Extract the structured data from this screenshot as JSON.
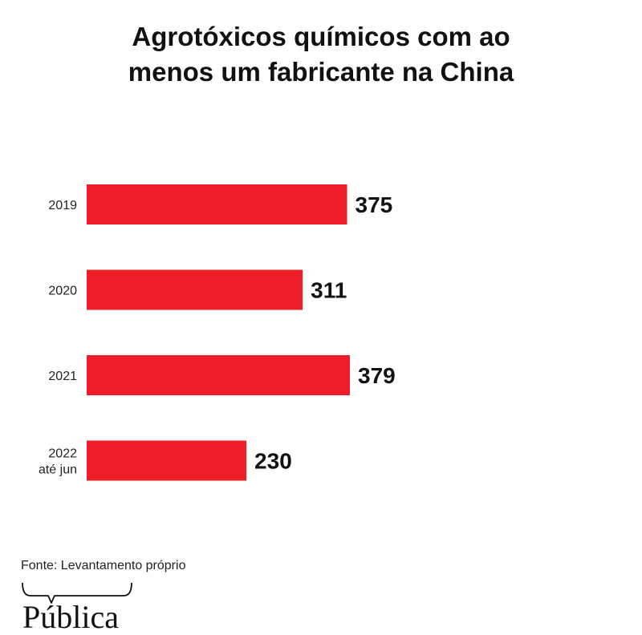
{
  "chart_data": {
    "type": "bar",
    "orientation": "horizontal",
    "title_lines": [
      "Agrotóxicos químicos com ao",
      "menos um fabricante na China"
    ],
    "categories": [
      [
        "2019"
      ],
      [
        "2020"
      ],
      [
        "2021"
      ],
      [
        "2022",
        "até jun"
      ]
    ],
    "values": [
      375,
      311,
      379,
      230
    ],
    "value_labels": [
      "375",
      "311",
      "379",
      "230"
    ],
    "xlim": [
      0,
      379
    ],
    "grid": false,
    "bar_color": "#ee1d27"
  },
  "source": "Fonte: Levantamento próprio",
  "logo": {
    "text": "Pública",
    "icon": "speech-bubble-brace-icon"
  }
}
